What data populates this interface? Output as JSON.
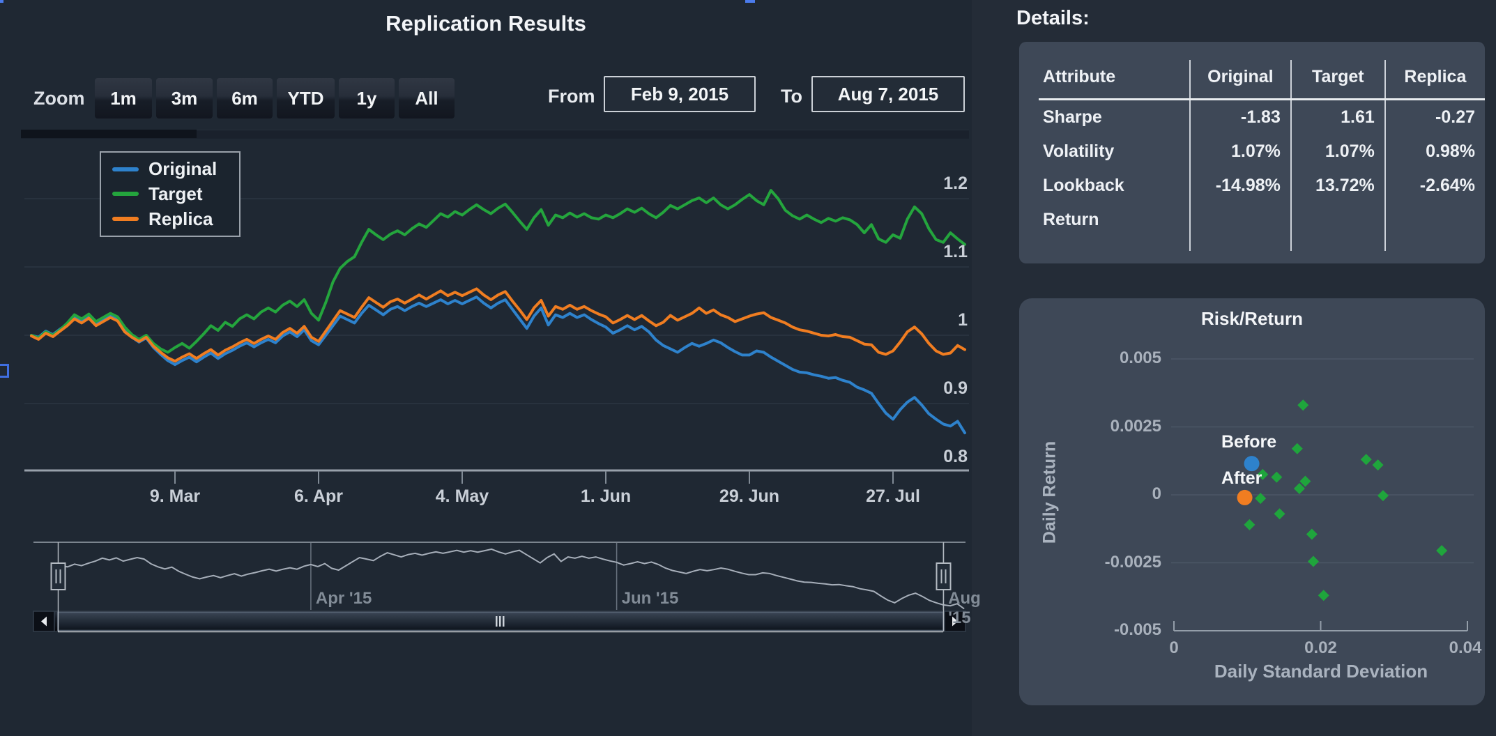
{
  "header": {
    "title": "Replication Results"
  },
  "controls": {
    "zoom_label": "Zoom",
    "zoom_buttons": [
      "1m",
      "3m",
      "6m",
      "YTD",
      "1y",
      "All"
    ],
    "from_label": "From",
    "from_value": "Feb 9, 2015",
    "to_label": "To",
    "to_value": "Aug 7, 2015"
  },
  "legend": {
    "items": [
      {
        "label": "Original",
        "color": "#2e82cc"
      },
      {
        "label": "Target",
        "color": "#24a53d"
      },
      {
        "label": "Replica",
        "color": "#f07d21"
      }
    ]
  },
  "details": {
    "heading": "Details:",
    "columns": [
      "Attribute",
      "Original",
      "Target",
      "Replica"
    ],
    "rows": [
      [
        "Sharpe",
        "-1.83",
        "1.61",
        "-0.27"
      ],
      [
        "Volatility",
        "1.07%",
        "1.07%",
        "0.98%"
      ],
      [
        "Lookback",
        "-14.98%",
        "13.72%",
        "-2.64%"
      ],
      [
        "Return",
        "",
        "",
        ""
      ]
    ]
  },
  "colors": {
    "page_bg": "#242c37",
    "chart_bg": "#1f2833",
    "panel_bg": "#3e4857",
    "grid": "#2b3542",
    "axis": "#98a1ab",
    "tick_label": "#c9cfd7",
    "nav_line": "#a7afba",
    "nav_label": "#828c97",
    "original": "#2e82cc",
    "target": "#24a53d",
    "replica": "#f07d21",
    "scatter_green": "#1fa53c",
    "rr_grid": "#4b5666",
    "rr_label": "#a9b1bc",
    "artifact_blue": "#4b7bec"
  },
  "chart_data": [
    {
      "type": "line",
      "title": "Replication Results",
      "x_range": [
        "Feb 9, 2015",
        "Aug 7, 2015"
      ],
      "x_unit": "trading-day index from Feb 9, 2015 (step = 1 day, 131 points)",
      "ylim": [
        0.8,
        1.2
      ],
      "grid": true,
      "legend_position": "top-left",
      "yticks": [
        {
          "label": "1.2",
          "value": 1.2
        },
        {
          "label": "1.1",
          "value": 1.1
        },
        {
          "label": "1",
          "value": 1.0
        },
        {
          "label": "0.9",
          "value": 0.9
        },
        {
          "label": "0.8",
          "value": 0.8
        }
      ],
      "xticks": [
        {
          "label": "9. Mar",
          "day": 20
        },
        {
          "label": "6. Apr",
          "day": 40
        },
        {
          "label": "4. May",
          "day": 60
        },
        {
          "label": "1. Jun",
          "day": 80
        },
        {
          "label": "29. Jun",
          "day": 100
        },
        {
          "label": "27. Jul",
          "day": 120
        }
      ],
      "series": [
        {
          "name": "Original",
          "color": "#2e82cc",
          "values": [
            1.0,
            0.997,
            1.006,
            1.001,
            1.009,
            1.016,
            1.026,
            1.02,
            1.027,
            1.016,
            1.022,
            1.028,
            1.023,
            1.007,
            0.997,
            0.99,
            0.996,
            0.982,
            0.972,
            0.963,
            0.957,
            0.963,
            0.968,
            0.961,
            0.968,
            0.974,
            0.966,
            0.973,
            0.978,
            0.984,
            0.989,
            0.983,
            0.989,
            0.994,
            0.989,
            0.999,
            1.005,
            0.998,
            1.008,
            0.992,
            0.986,
            1.0,
            1.014,
            1.028,
            1.023,
            1.018,
            1.032,
            1.044,
            1.037,
            1.03,
            1.038,
            1.042,
            1.036,
            1.042,
            1.047,
            1.042,
            1.047,
            1.052,
            1.046,
            1.051,
            1.046,
            1.051,
            1.056,
            1.047,
            1.04,
            1.047,
            1.052,
            1.038,
            1.024,
            1.01,
            1.028,
            1.04,
            1.015,
            1.03,
            1.026,
            1.032,
            1.026,
            1.03,
            1.023,
            1.017,
            1.012,
            1.003,
            1.008,
            1.014,
            1.008,
            1.013,
            1.005,
            0.993,
            0.985,
            0.98,
            0.975,
            0.982,
            0.988,
            0.984,
            0.988,
            0.993,
            0.989,
            0.982,
            0.976,
            0.971,
            0.971,
            0.977,
            0.975,
            0.968,
            0.962,
            0.956,
            0.95,
            0.946,
            0.945,
            0.942,
            0.94,
            0.937,
            0.938,
            0.934,
            0.931,
            0.924,
            0.92,
            0.915,
            0.9,
            0.886,
            0.877,
            0.891,
            0.902,
            0.909,
            0.898,
            0.885,
            0.877,
            0.87,
            0.867,
            0.874,
            0.857
          ]
        },
        {
          "name": "Target",
          "color": "#24a53d",
          "values": [
            1.0,
            0.996,
            1.005,
            1.0,
            1.008,
            1.018,
            1.03,
            1.024,
            1.031,
            1.02,
            1.026,
            1.032,
            1.027,
            1.012,
            1.001,
            0.994,
            1.0,
            0.988,
            0.98,
            0.975,
            0.982,
            0.988,
            0.981,
            0.991,
            1.002,
            1.014,
            1.007,
            1.019,
            1.013,
            1.024,
            1.03,
            1.024,
            1.034,
            1.04,
            1.034,
            1.044,
            1.05,
            1.042,
            1.052,
            1.032,
            1.022,
            1.048,
            1.078,
            1.098,
            1.108,
            1.115,
            1.136,
            1.155,
            1.147,
            1.14,
            1.148,
            1.153,
            1.147,
            1.156,
            1.163,
            1.158,
            1.168,
            1.178,
            1.173,
            1.181,
            1.176,
            1.184,
            1.191,
            1.184,
            1.178,
            1.186,
            1.192,
            1.18,
            1.167,
            1.155,
            1.172,
            1.184,
            1.161,
            1.176,
            1.172,
            1.179,
            1.173,
            1.178,
            1.172,
            1.17,
            1.176,
            1.172,
            1.178,
            1.185,
            1.18,
            1.186,
            1.178,
            1.172,
            1.18,
            1.19,
            1.185,
            1.191,
            1.197,
            1.201,
            1.194,
            1.201,
            1.191,
            1.185,
            1.191,
            1.199,
            1.206,
            1.197,
            1.191,
            1.212,
            1.2,
            1.183,
            1.175,
            1.17,
            1.176,
            1.17,
            1.165,
            1.171,
            1.167,
            1.172,
            1.169,
            1.162,
            1.15,
            1.162,
            1.141,
            1.136,
            1.147,
            1.142,
            1.17,
            1.188,
            1.178,
            1.156,
            1.14,
            1.136,
            1.15,
            1.141,
            1.133
          ]
        },
        {
          "name": "Replica",
          "color": "#f07d21",
          "values": [
            0.999,
            0.994,
            1.003,
            0.998,
            1.006,
            1.014,
            1.024,
            1.018,
            1.025,
            1.014,
            1.02,
            1.026,
            1.021,
            1.005,
            0.997,
            0.991,
            0.997,
            0.984,
            0.975,
            0.967,
            0.962,
            0.968,
            0.973,
            0.966,
            0.973,
            0.979,
            0.971,
            0.978,
            0.983,
            0.989,
            0.994,
            0.988,
            0.994,
            0.999,
            0.994,
            1.004,
            1.01,
            1.003,
            1.013,
            0.997,
            0.991,
            1.006,
            1.021,
            1.036,
            1.031,
            1.026,
            1.041,
            1.055,
            1.048,
            1.041,
            1.049,
            1.053,
            1.047,
            1.053,
            1.059,
            1.053,
            1.059,
            1.065,
            1.058,
            1.063,
            1.058,
            1.063,
            1.068,
            1.059,
            1.052,
            1.059,
            1.064,
            1.05,
            1.037,
            1.023,
            1.04,
            1.051,
            1.028,
            1.042,
            1.038,
            1.044,
            1.038,
            1.042,
            1.036,
            1.031,
            1.027,
            1.018,
            1.023,
            1.029,
            1.023,
            1.029,
            1.021,
            1.014,
            1.019,
            1.029,
            1.022,
            1.027,
            1.032,
            1.04,
            1.032,
            1.037,
            1.03,
            1.026,
            1.02,
            1.024,
            1.028,
            1.031,
            1.033,
            1.026,
            1.022,
            1.018,
            1.012,
            1.008,
            1.006,
            1.003,
            1.0,
            0.999,
            1.001,
            0.998,
            0.997,
            0.992,
            0.987,
            0.986,
            0.975,
            0.972,
            0.977,
            0.99,
            1.005,
            1.012,
            1.002,
            0.988,
            0.977,
            0.972,
            0.974,
            0.985,
            0.979
          ]
        }
      ],
      "navigator": {
        "series_ref": "Original",
        "labels": [
          {
            "label": "Apr '15",
            "day": 36
          },
          {
            "label": "Jun '15",
            "day": 80
          },
          {
            "label": "Aug '15",
            "day": 127
          }
        ]
      }
    },
    {
      "type": "scatter",
      "title": "Risk/Return",
      "xlabel": "Daily Standard Deviation",
      "ylabel": "Daily Return",
      "xlim": [
        0,
        0.04
      ],
      "ylim": [
        -0.005,
        0.005
      ],
      "grid": true,
      "xticks": [
        {
          "label": "0",
          "value": 0
        },
        {
          "label": "0.02",
          "value": 0.02
        },
        {
          "label": "0.04",
          "value": 0.04
        }
      ],
      "yticks": [
        {
          "label": "0.005",
          "value": 0.005
        },
        {
          "label": "0.0025",
          "value": 0.0025
        },
        {
          "label": "0",
          "value": 0
        },
        {
          "label": "-0.0025",
          "value": -0.0025
        },
        {
          "label": "-0.005",
          "value": -0.005
        }
      ],
      "series": [
        {
          "name": "Components",
          "color": "#1fa53c",
          "marker": "diamond",
          "points": [
            [
              0.0176,
              0.0033
            ],
            [
              0.0168,
              0.0017
            ],
            [
              0.0262,
              0.0013
            ],
            [
              0.0278,
              0.0011
            ],
            [
              0.0121,
              0.00075
            ],
            [
              0.014,
              0.00065
            ],
            [
              0.0179,
              0.0005
            ],
            [
              0.0171,
              0.00023
            ],
            [
              0.0285,
              -3e-05
            ],
            [
              0.0118,
              -0.00013
            ],
            [
              0.0144,
              -0.0007
            ],
            [
              0.0103,
              -0.0011
            ],
            [
              0.0188,
              -0.00145
            ],
            [
              0.0365,
              -0.00205
            ],
            [
              0.019,
              -0.00245
            ],
            [
              0.0204,
              -0.0037
            ]
          ]
        },
        {
          "name": "Before",
          "color": "#2e82cc",
          "marker": "circle",
          "points": [
            [
              0.0106,
              0.00115
            ]
          ]
        },
        {
          "name": "After",
          "color": "#f07d21",
          "marker": "circle",
          "points": [
            [
              0.00965,
              -0.0001
            ]
          ]
        }
      ]
    }
  ]
}
